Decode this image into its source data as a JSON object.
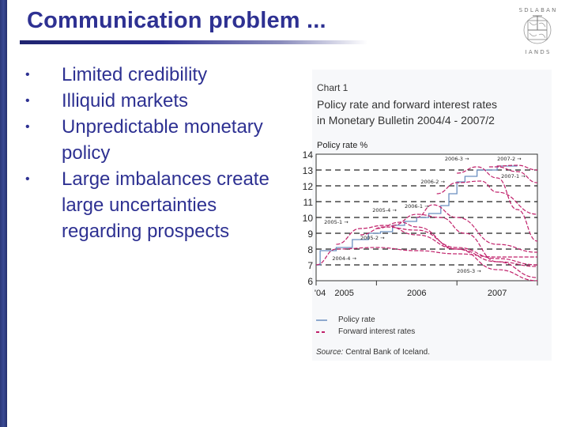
{
  "slide": {
    "title": "Communication problem ...",
    "bullets": [
      {
        "symbol": "•",
        "text": "Limited credibility"
      },
      {
        "symbol": "•",
        "text": "Illiquid markets"
      },
      {
        "symbol": "•",
        "text": "Unpredictable monetary policy"
      },
      {
        "symbol": "•",
        "text": "Large imbalances create large uncertainties regarding prospects"
      }
    ],
    "logo": "central-bank-seal-icon",
    "colors": {
      "title": "#2e3192",
      "bullet_text": "#2e3192",
      "sidebar": "#2b3778"
    }
  },
  "chart": {
    "label": "Chart 1",
    "title_line1": "Policy rate and forward interest rates",
    "title_line2": "in Monetary Bulletin 2004/4 - 2007/2",
    "ylabel": "Policy rate %",
    "legend": {
      "policy": "Policy rate",
      "forward": "Forward interest rates"
    },
    "source_prefix": "Source:",
    "source_text": " Central Bank of Iceland."
  },
  "chart_data": {
    "type": "line",
    "title": "Policy rate and forward interest rates in Monetary Bulletin 2004/4 - 2007/2",
    "xlabel": "",
    "ylabel": "Policy rate %",
    "ylim": [
      6,
      14
    ],
    "yticks": [
      6,
      7,
      8,
      9,
      10,
      11,
      12,
      13,
      14
    ],
    "xticks": [
      "'04",
      "2005",
      "2006",
      "2007"
    ],
    "grid": "dashed horizontal",
    "legend_position": "below",
    "colors": {
      "policy_rate": "#6a8fc0",
      "forward_rates": "#c0206a"
    },
    "series": [
      {
        "name": "Policy rate",
        "style": "solid-step",
        "x": [
          2004.75,
          2004.8,
          2005.0,
          2005.2,
          2005.4,
          2005.55,
          2005.7,
          2005.85,
          2006.0,
          2006.15,
          2006.3,
          2006.4,
          2006.5,
          2006.6,
          2006.75,
          2007.0,
          2007.25
        ],
        "values": [
          7.0,
          7.9,
          8.1,
          8.6,
          9.0,
          9.1,
          9.5,
          9.75,
          10.0,
          10.25,
          10.75,
          11.5,
          12.25,
          12.6,
          13.0,
          13.25,
          13.25
        ]
      },
      {
        "name": "Forward 2004-4",
        "annotation": "2004-4",
        "x": [
          2004.75,
          2005.0,
          2005.5,
          2006.0,
          2006.5,
          2007.0,
          2007.5
        ],
        "values": [
          7.0,
          8.0,
          8.1,
          7.9,
          7.7,
          7.5,
          7.5
        ]
      },
      {
        "name": "Forward 2005-1",
        "annotation": "2005-1",
        "x": [
          2005.0,
          2005.3,
          2005.6,
          2006.0,
          2006.5,
          2007.0,
          2007.5
        ],
        "values": [
          8.3,
          9.3,
          9.5,
          8.9,
          8.0,
          7.2,
          6.9
        ]
      },
      {
        "name": "Forward 2005-2",
        "annotation": "2005-2",
        "x": [
          2005.3,
          2005.6,
          2006.0,
          2006.5,
          2007.0,
          2007.5
        ],
        "values": [
          8.9,
          9.4,
          9.2,
          8.1,
          7.4,
          7.0
        ]
      },
      {
        "name": "Forward 2005-3",
        "annotation": "2005-3",
        "x": [
          2005.5,
          2005.8,
          2006.0,
          2006.5,
          2007.0,
          2007.5
        ],
        "values": [
          9.3,
          9.7,
          9.4,
          8.0,
          6.7,
          6.0
        ]
      },
      {
        "name": "Forward 2005-4",
        "annotation": "2005-4",
        "x": [
          2005.7,
          2006.0,
          2006.3,
          2006.6,
          2007.0,
          2007.5
        ],
        "values": [
          9.5,
          10.2,
          10.0,
          9.0,
          7.2,
          6.2
        ]
      },
      {
        "name": "Forward 2006-1",
        "annotation": "2006-1",
        "x": [
          2006.0,
          2006.2,
          2006.5,
          2007.0,
          2007.5
        ],
        "values": [
          10.0,
          10.8,
          10.0,
          8.3,
          7.8
        ]
      },
      {
        "name": "Forward 2006-2",
        "annotation": "2006-2",
        "x": [
          2006.25,
          2006.5,
          2006.8,
          2007.0,
          2007.5
        ],
        "values": [
          11.5,
          12.2,
          12.3,
          11.6,
          10.2
        ]
      },
      {
        "name": "Forward 2006-3",
        "annotation": "2006-3",
        "x": [
          2006.5,
          2006.75,
          2007.0,
          2007.25,
          2007.5
        ],
        "values": [
          12.8,
          13.2,
          12.5,
          10.5,
          8.5
        ]
      },
      {
        "name": "Forward 2007-1",
        "annotation": "2007-1",
        "x": [
          2006.9,
          2007.0,
          2007.25,
          2007.5
        ],
        "values": [
          13.2,
          13.2,
          12.9,
          12.2
        ]
      },
      {
        "name": "Forward 2007-2",
        "annotation": "2007-2",
        "x": [
          2007.0,
          2007.25,
          2007.5
        ],
        "values": [
          13.25,
          13.3,
          13.0
        ]
      }
    ]
  }
}
